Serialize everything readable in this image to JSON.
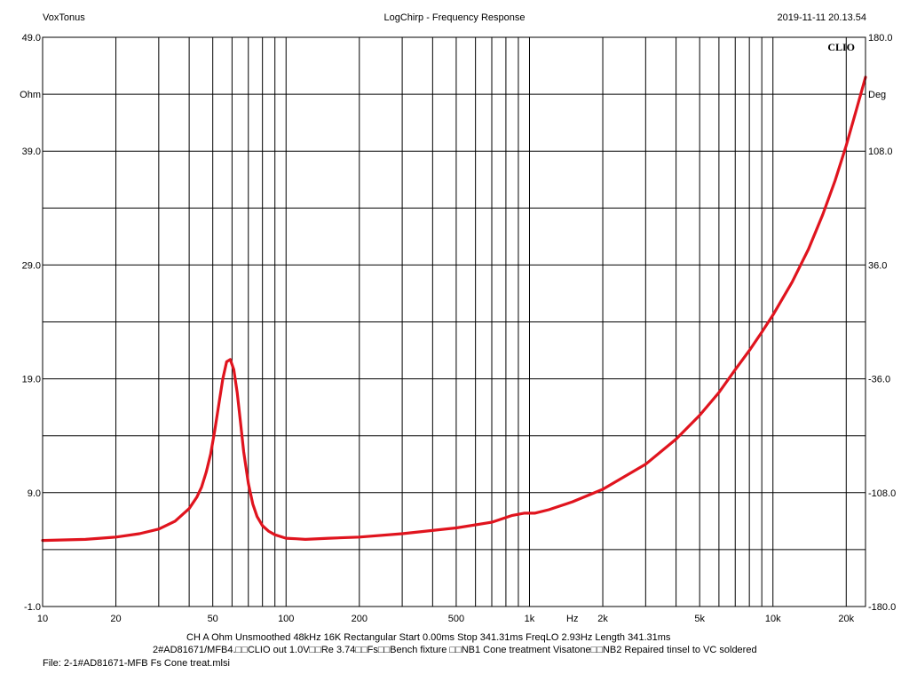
{
  "header": {
    "left": "VoxTonus",
    "center": "LogChirp - Frequency Response",
    "right": "2019-11-11 20.13.54"
  },
  "brand": "CLIO",
  "footer": {
    "settings": "CH A   Ohm   Unsmoothed   48kHz   16K   Rectangular   Start 0.00ms    Stop 341.31ms    FreqLO 2.93Hz    Length 341.31ms",
    "notes": "2#AD81671/MFB4.□□CLIO out 1.0V□□Re 3.74□□Fs□□Bench fixture □□NB1 Cone treatment Visatone□□NB2 Repaired tinsel to VC soldered",
    "file": "File: 2-1#AD81671-MFB Fs Cone treat.mlsi"
  },
  "chart_data": {
    "type": "line",
    "xscale": "log",
    "xlim": [
      10,
      24000
    ],
    "ylim": [
      -1.0,
      49.0
    ],
    "y2lim": [
      -180.0,
      180.0
    ],
    "xlabel": "Hz",
    "ylabel": "Ohm",
    "y2label": "Deg",
    "grid": true,
    "x_tick_labels": [
      {
        "v": 10,
        "label": "10"
      },
      {
        "v": 20,
        "label": "20"
      },
      {
        "v": 50,
        "label": "50"
      },
      {
        "v": 100,
        "label": "100"
      },
      {
        "v": 200,
        "label": "200"
      },
      {
        "v": 500,
        "label": "500"
      },
      {
        "v": 1000,
        "label": "1k"
      },
      {
        "v": 2000,
        "label": "2k"
      },
      {
        "v": 5000,
        "label": "5k"
      },
      {
        "v": 10000,
        "label": "10k"
      },
      {
        "v": 20000,
        "label": "20k"
      }
    ],
    "y_tick_labels": [
      "49.0",
      "39.0",
      "29.0",
      "19.0",
      "9.0",
      "-1.0"
    ],
    "y2_tick_labels": [
      "180.0",
      "108.0",
      "36.0",
      "-36.0",
      "-108.0",
      "-180.0"
    ],
    "series": [
      {
        "color": "#e0141e",
        "x": [
          10,
          15,
          20,
          25,
          30,
          35,
          40,
          43,
          45,
          47,
          49,
          51,
          53,
          55,
          57,
          59,
          61,
          63,
          65,
          67,
          70,
          73,
          76,
          80,
          85,
          90,
          100,
          110,
          120,
          150,
          200,
          300,
          500,
          700,
          850,
          950,
          1050,
          1200,
          1500,
          2000,
          3000,
          4000,
          5000,
          6000,
          7000,
          8000,
          9000,
          10000,
          12000,
          14000,
          16000,
          18000,
          20000,
          22000,
          24000
        ],
        "y": [
          4.8,
          4.9,
          5.1,
          5.4,
          5.8,
          6.5,
          7.6,
          8.6,
          9.5,
          10.8,
          12.4,
          14.5,
          16.8,
          19.0,
          20.5,
          20.7,
          19.8,
          17.8,
          15.2,
          12.6,
          9.8,
          8.0,
          6.9,
          6.1,
          5.6,
          5.3,
          5.0,
          4.95,
          4.9,
          5.0,
          5.1,
          5.4,
          5.9,
          6.4,
          7.0,
          7.2,
          7.2,
          7.5,
          8.2,
          9.3,
          11.5,
          13.7,
          15.8,
          17.8,
          19.8,
          21.5,
          23.1,
          24.6,
          27.5,
          30.4,
          33.4,
          36.4,
          39.5,
          42.6,
          45.5
        ]
      }
    ]
  }
}
